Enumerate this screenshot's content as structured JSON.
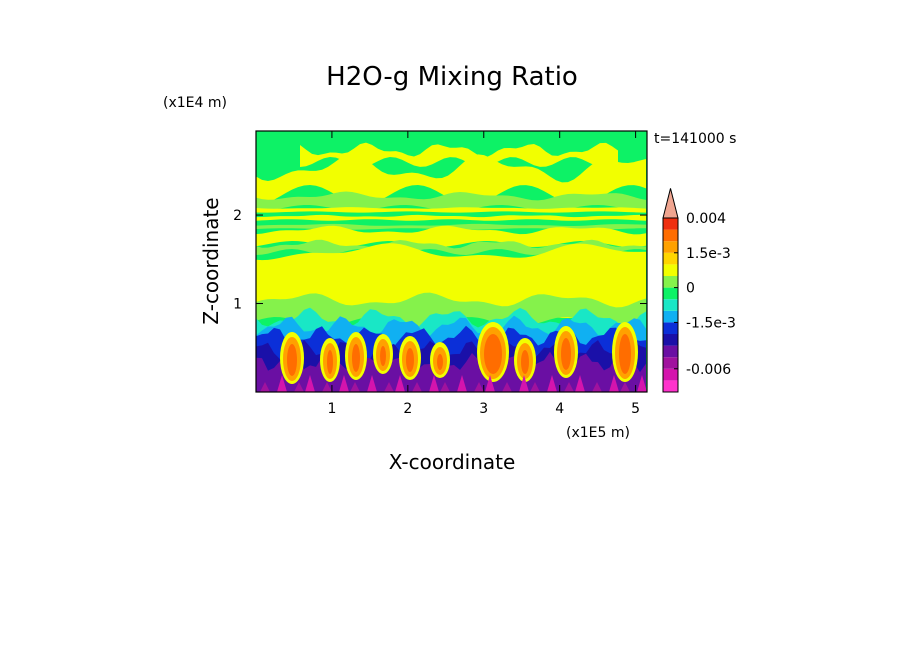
{
  "chart_data": {
    "type": "heatmap",
    "title": "H2O-g Mixing Ratio",
    "xlabel": "X-coordinate",
    "ylabel": "Z-coordinate",
    "x_unit_label": "(x1E5 m)",
    "y_unit_label": "(x1E4 m)",
    "time_label": "t=141000 s",
    "xlim": [
      0,
      5.15
    ],
    "ylim": [
      0,
      2.95
    ],
    "x_ticks": [
      {
        "value": 1,
        "label": "1"
      },
      {
        "value": 2,
        "label": "2"
      },
      {
        "value": 3,
        "label": "3"
      },
      {
        "value": 4,
        "label": "4"
      },
      {
        "value": 5,
        "label": "5"
      }
    ],
    "y_ticks": [
      {
        "value": 1,
        "label": "1"
      },
      {
        "value": 2,
        "label": "2"
      }
    ],
    "colorbar": {
      "levels": [
        {
          "name": "lt -0.0075",
          "color": "#ff33cc"
        },
        {
          "name": "-0.0075 to -0.006",
          "color": "#d414ad"
        },
        {
          "name": "-0.006 to -0.0045",
          "color": "#a0129e"
        },
        {
          "name": "-0.0045 to -0.003",
          "color": "#6a0fa3"
        },
        {
          "name": "-0.003 to -0.002",
          "color": "#1a10a8"
        },
        {
          "name": "-0.002 to -0.0015",
          "color": "#0b2fd8"
        },
        {
          "name": "-0.0015 to -0.001",
          "color": "#10b0f2"
        },
        {
          "name": "-0.001 to -0.0005",
          "color": "#19e7c6"
        },
        {
          "name": "-0.0005 to 0",
          "color": "#0df266"
        },
        {
          "name": "0 to 0.0005",
          "color": "#85f24b"
        },
        {
          "name": "0.0005 to 0.001",
          "color": "#f2ff00"
        },
        {
          "name": "0.001 to 0.0015",
          "color": "#ffd500"
        },
        {
          "name": "0.0015 to 0.002",
          "color": "#ffa100"
        },
        {
          "name": "0.002 to 0.003",
          "color": "#ff6d00"
        },
        {
          "name": "0.003 to 0.004",
          "color": "#ef2f10"
        },
        {
          "name": "gt 0.004",
          "color": "#f0a590"
        }
      ],
      "tick_labels": [
        {
          "label": "0.004",
          "level_index": 15
        },
        {
          "label": "1.5e-3",
          "level_index": 12
        },
        {
          "label": "0",
          "level_index": 9
        },
        {
          "label": "-1.5e-3",
          "level_index": 6
        },
        {
          "label": "-0.006",
          "level_index": 2
        }
      ]
    }
  }
}
